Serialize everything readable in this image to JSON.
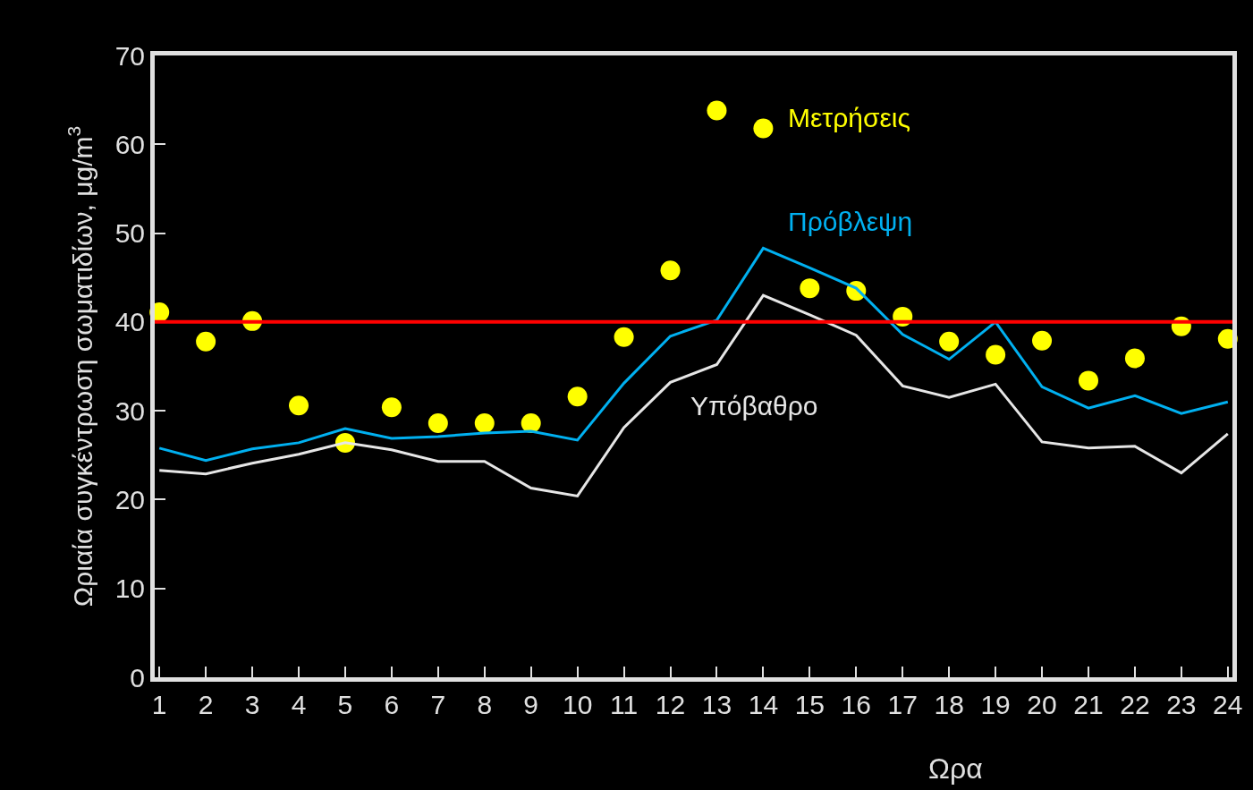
{
  "chart_data": {
    "type": "line",
    "xlabel": "Ωρα",
    "ylabel": "Ωριαία συγκέντρωση σωματιδίων, μg/m$^{3}$",
    "x": [
      1,
      2,
      3,
      4,
      5,
      6,
      7,
      8,
      9,
      10,
      11,
      12,
      13,
      14,
      15,
      16,
      17,
      18,
      19,
      20,
      21,
      22,
      23,
      24
    ],
    "xlim": [
      0.9,
      24.1
    ],
    "xticks": [
      1,
      2,
      3,
      4,
      5,
      6,
      7,
      8,
      9,
      10,
      11,
      12,
      13,
      14,
      15,
      16,
      17,
      18,
      19,
      20,
      21,
      22,
      23,
      24
    ],
    "ylim": [
      0,
      70
    ],
    "yticks": [
      0,
      10,
      20,
      30,
      40,
      50,
      60,
      70
    ],
    "grid": false,
    "legend": false,
    "series": [
      {
        "name": "Μετρήσεις",
        "type": "scatter",
        "marker": "circle",
        "color": "#ffff00",
        "values": [
          41.1,
          37.8,
          40.1,
          30.6,
          26.4,
          30.4,
          28.6,
          28.6,
          28.6,
          31.6,
          38.3,
          45.8,
          63.8,
          61.8,
          43.8,
          43.5,
          40.6,
          37.8,
          36.3,
          37.9,
          33.4,
          35.9,
          39.5,
          38.1
        ]
      },
      {
        "name": "Πρόβλεψη",
        "color": "#00b0f0",
        "values": [
          25.8,
          24.4,
          25.7,
          26.4,
          28.0,
          26.9,
          27.1,
          27.5,
          27.7,
          26.7,
          33.1,
          38.4,
          40.2,
          48.3,
          46.1,
          43.8,
          38.6,
          35.8,
          40.0,
          32.7,
          30.3,
          31.7,
          29.7,
          31.0
        ]
      },
      {
        "name": "Υπόβαθρο",
        "color": "#e6e6e6",
        "values": [
          23.3,
          22.9,
          24.1,
          25.1,
          26.4,
          25.6,
          24.3,
          24.3,
          21.3,
          20.4,
          28.1,
          33.2,
          35.2,
          43.0,
          40.8,
          38.5,
          32.8,
          31.5,
          33.0,
          26.5,
          25.8,
          26.0,
          23.0,
          27.4
        ]
      }
    ],
    "ref_lines": [
      {
        "axis": "y",
        "value": 40,
        "color": "#ff0000",
        "line_style": "solid"
      }
    ]
  }
}
